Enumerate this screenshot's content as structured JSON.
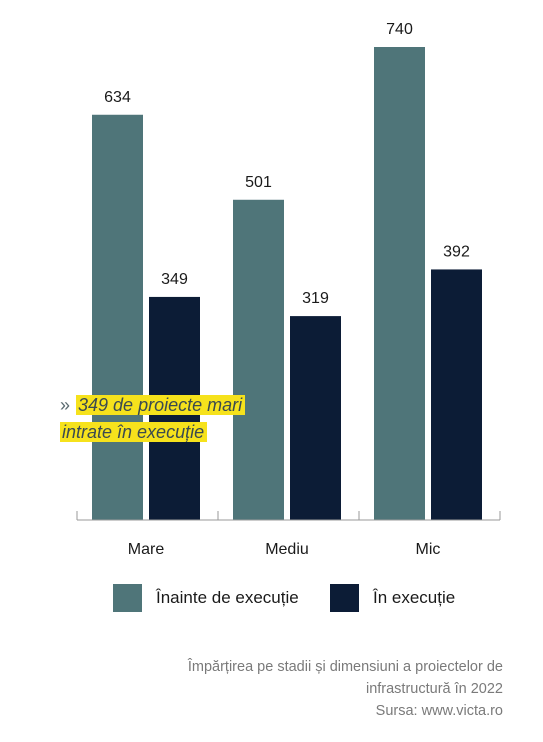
{
  "chart_data": {
    "type": "bar",
    "categories": [
      "Mare",
      "Mediu",
      "Mic"
    ],
    "series": [
      {
        "name": "Înainte de execuție",
        "values": [
          634,
          501,
          740
        ],
        "color": "#4f7579"
      },
      {
        "name": "În execuție",
        "values": [
          349,
          319,
          392
        ],
        "color": "#0c1c36"
      }
    ],
    "ylim": [
      0,
      800
    ],
    "grid": false,
    "legend_position": "bottom",
    "data_labels": true
  },
  "callout": {
    "marker": "»",
    "line1": "349 de proiecte mari",
    "line2": "intrate în execuție",
    "highlight_color": "#f6e21c"
  },
  "caption": {
    "line1": "Împărțirea pe stadii și dimensiuni a proiectelor de",
    "line2": "infrastructură în 2022",
    "source": "Sursa: www.victa.ro"
  }
}
